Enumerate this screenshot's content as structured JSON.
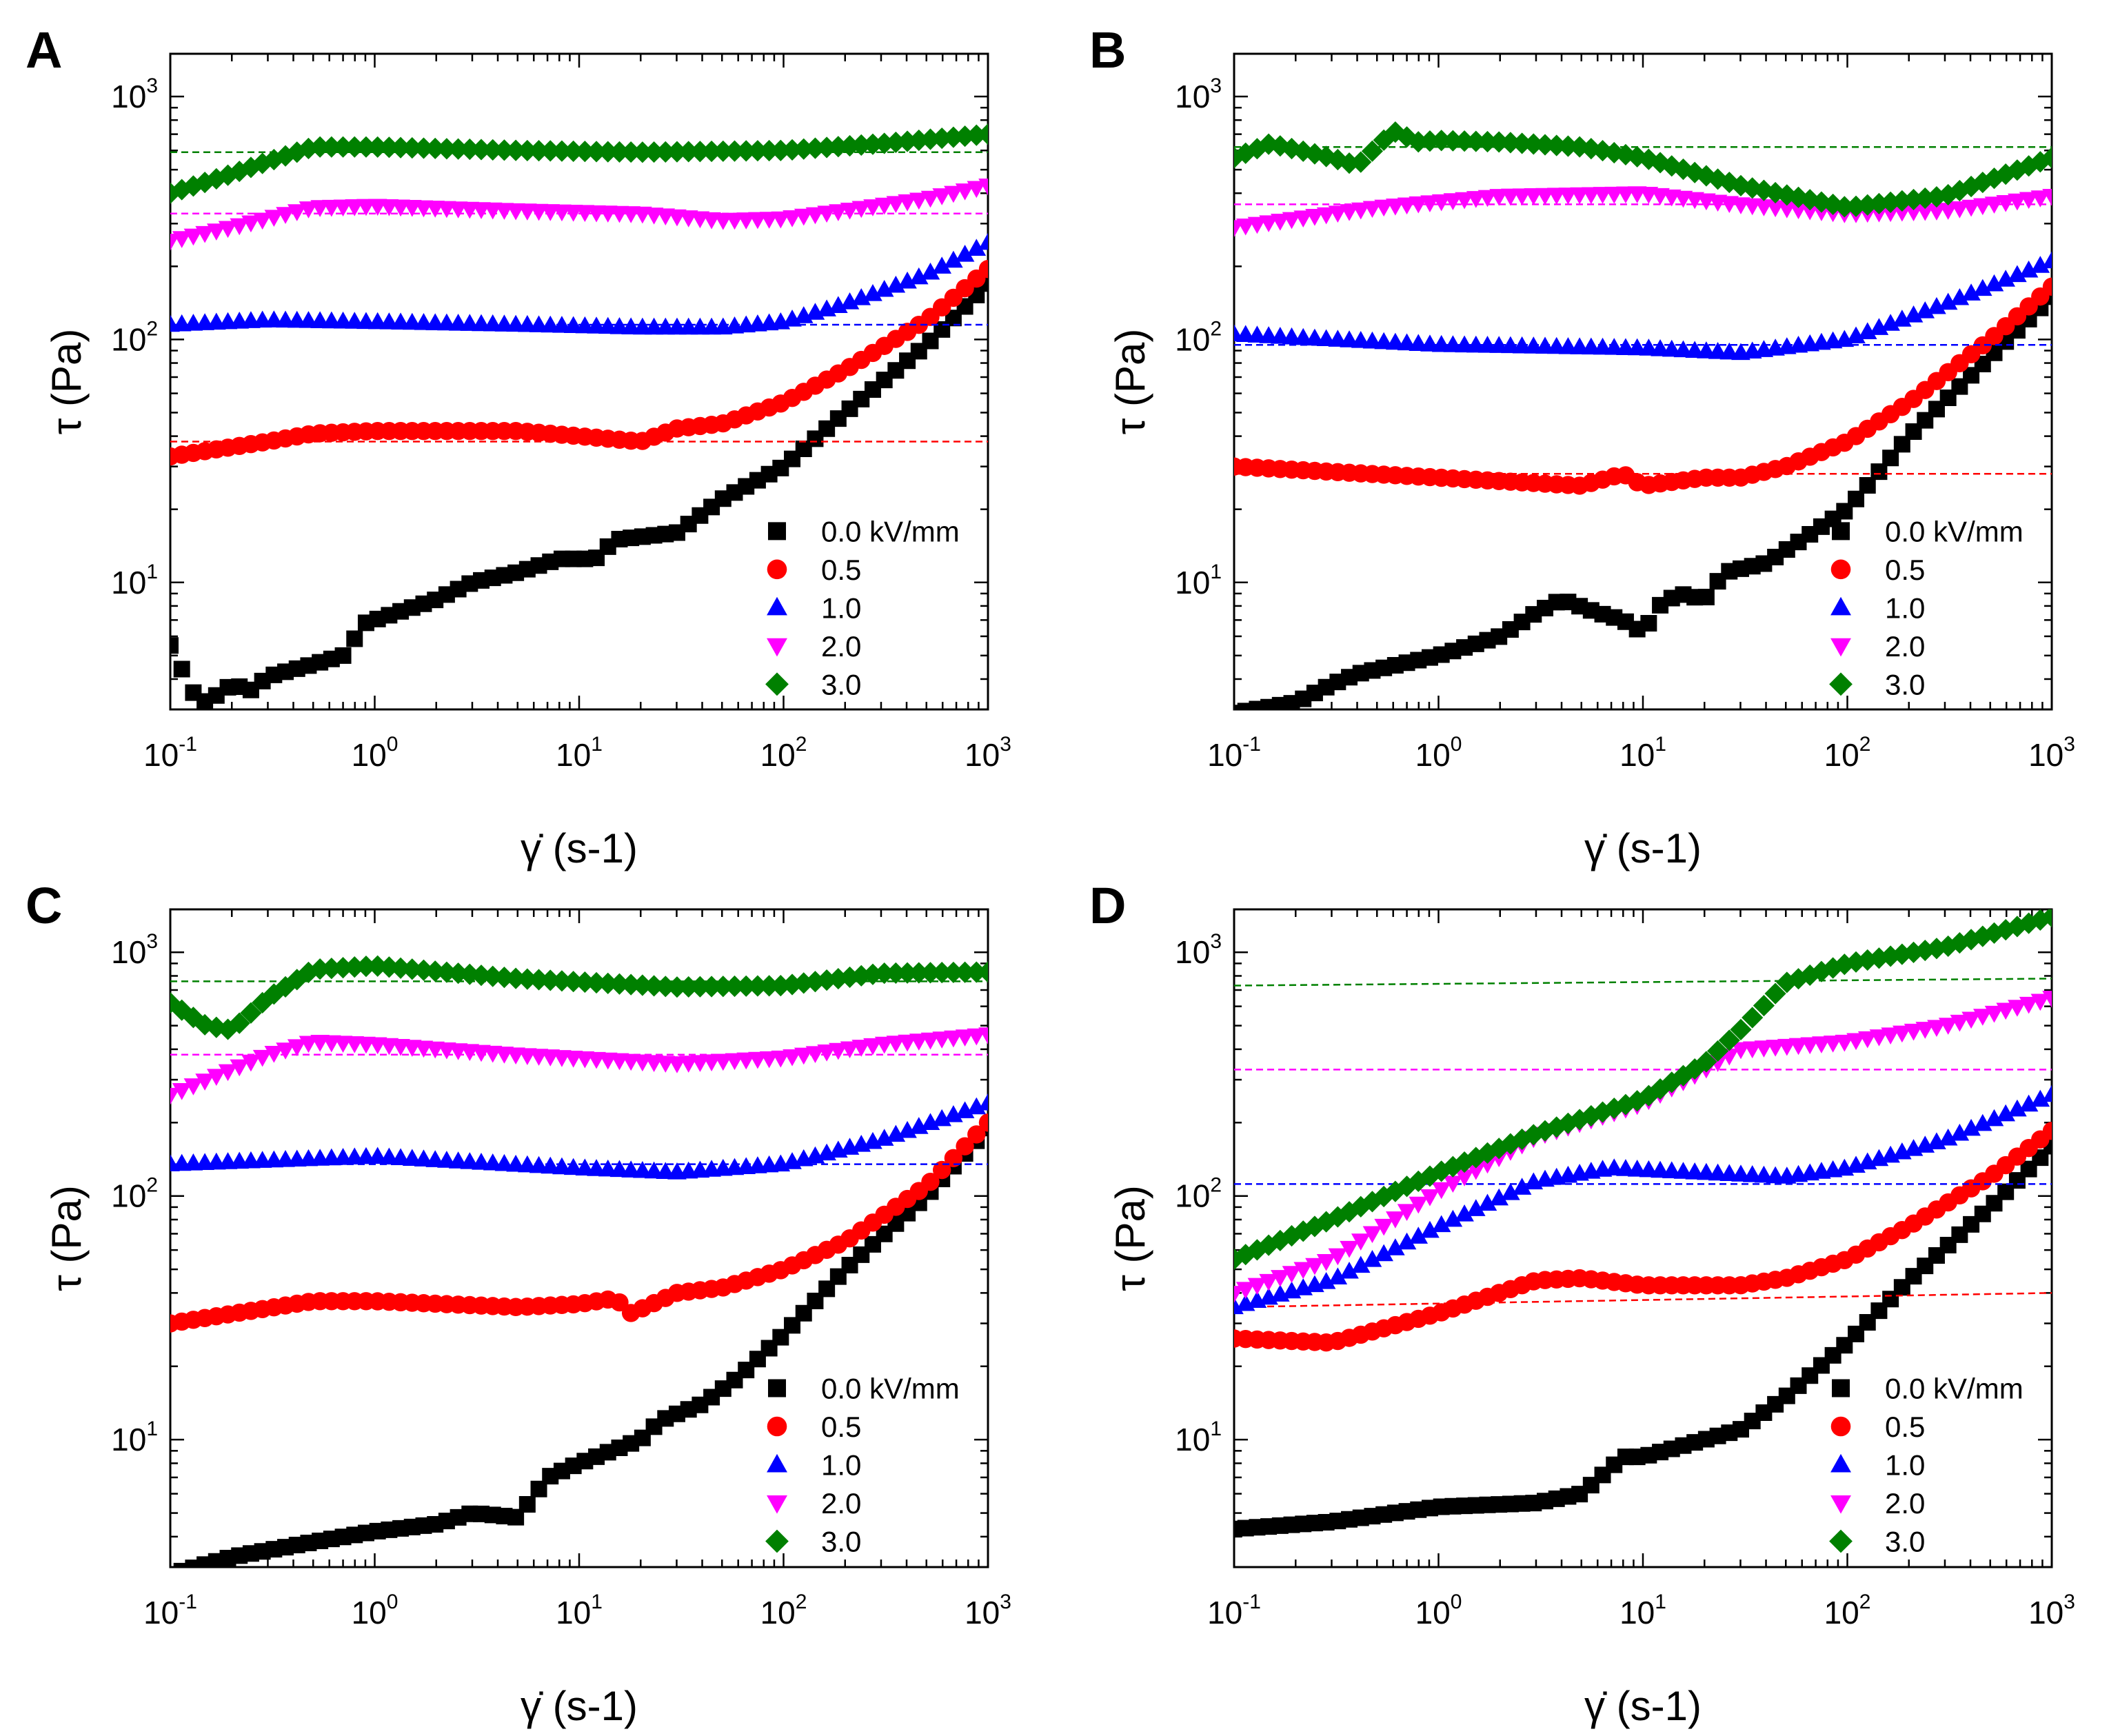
{
  "chart_data": [
    {
      "panel": "A",
      "type": "scatter",
      "xscale": "log",
      "yscale": "log",
      "xlim": [
        0.1,
        1000
      ],
      "ylim": [
        3,
        1500
      ],
      "xlabel": "γ̇ (s-1)",
      "ylabel": "τ (Pa)",
      "xticks": [
        "10^-1",
        "10^0",
        "10^1",
        "10^2",
        "10^3"
      ],
      "yticks": [
        "10^1",
        "10^2",
        "10^3"
      ],
      "legend_position": "bottom-right",
      "series": [
        {
          "name": "0.0 kV/mm",
          "color": "#000000",
          "marker": "square",
          "x": [
            0.1,
            0.13,
            0.15,
            0.2,
            0.25,
            0.3,
            0.5,
            0.7,
            0.9,
            2,
            3,
            5,
            8,
            12,
            15,
            30,
            50,
            100,
            200,
            500,
            1000
          ],
          "y": [
            5.5,
            3.5,
            3.2,
            3.8,
            3.6,
            4.1,
            4.6,
            5,
            6.8,
            8.5,
            10,
            11,
            12.5,
            12.5,
            15,
            16,
            22,
            30,
            50,
            95,
            170
          ]
        },
        {
          "name": "0.5",
          "color": "#ff0000",
          "marker": "circle",
          "yield_line": [
            38,
            38
          ],
          "x": [
            0.1,
            0.3,
            0.5,
            1,
            5,
            10,
            20,
            30,
            50,
            100,
            200,
            500,
            1000
          ],
          "y": [
            33,
            38,
            41,
            42,
            42,
            40,
            38,
            43,
            45,
            55,
            75,
            120,
            195
          ]
        },
        {
          "name": "1.0",
          "color": "#0000ff",
          "marker": "triangle-up",
          "yield_line": [
            115,
            115
          ],
          "x": [
            0.1,
            0.3,
            1,
            5,
            20,
            50,
            100,
            200,
            500,
            1000
          ],
          "y": [
            115,
            120,
            118,
            115,
            112,
            112,
            118,
            140,
            185,
            250
          ]
        },
        {
          "name": "2.0",
          "color": "#ff00ff",
          "marker": "triangle-down",
          "yield_line": [
            330,
            330
          ],
          "x": [
            0.1,
            0.2,
            0.5,
            1,
            5,
            20,
            50,
            100,
            200,
            500,
            1000
          ],
          "y": [
            255,
            290,
            350,
            355,
            340,
            330,
            310,
            315,
            340,
            380,
            430
          ]
        },
        {
          "name": "3.0",
          "color": "#008000",
          "marker": "diamond",
          "yield_line": [
            590,
            590
          ],
          "x": [
            0.1,
            0.2,
            0.3,
            0.5,
            0.7,
            1,
            5,
            20,
            100,
            300,
            1000
          ],
          "y": [
            400,
            480,
            540,
            620,
            620,
            620,
            600,
            590,
            600,
            640,
            700
          ]
        }
      ]
    },
    {
      "panel": "B",
      "type": "scatter",
      "xscale": "log",
      "yscale": "log",
      "xlim": [
        0.1,
        1000
      ],
      "ylim": [
        3,
        1500
      ],
      "xlabel": "γ̇ (s-1)",
      "ylabel": "τ (Pa)",
      "xticks": [
        "10^-1",
        "10^0",
        "10^1",
        "10^2",
        "10^3"
      ],
      "yticks": [
        "10^1",
        "10^2",
        "10^3"
      ],
      "legend_position": "bottom-right",
      "series": [
        {
          "name": "0.0 kV/mm",
          "color": "#000000",
          "marker": "square",
          "x": [
            0.1,
            0.2,
            0.3,
            0.4,
            1,
            2,
            3,
            4,
            6,
            8,
            10,
            12,
            15,
            20,
            25,
            40,
            60,
            100,
            200,
            500,
            1000
          ],
          "y": [
            2.9,
            3.2,
            3.8,
            4.2,
            5,
            6,
            7.5,
            8.5,
            7.5,
            7,
            6.2,
            8,
            9,
            8.5,
            11,
            12,
            15,
            20,
            40,
            85,
            150
          ]
        },
        {
          "name": "0.5",
          "color": "#ff0000",
          "marker": "circle",
          "yield_line": [
            28,
            28
          ],
          "x": [
            0.1,
            1,
            5,
            8,
            10,
            20,
            30,
            50,
            100,
            200,
            500,
            1000
          ],
          "y": [
            30,
            27,
            25,
            28,
            25,
            27,
            27,
            30,
            38,
            55,
            100,
            165
          ]
        },
        {
          "name": "1.0",
          "color": "#0000ff",
          "marker": "triangle-up",
          "yield_line": [
            95,
            95
          ],
          "x": [
            0.1,
            1,
            10,
            30,
            100,
            300,
            1000
          ],
          "y": [
            105,
            95,
            92,
            88,
            100,
            140,
            210
          ]
        },
        {
          "name": "2.0",
          "color": "#ff00ff",
          "marker": "triangle-down",
          "yield_line": [
            360,
            360
          ],
          "x": [
            0.1,
            0.5,
            2,
            10,
            30,
            100,
            300,
            1000
          ],
          "y": [
            290,
            350,
            390,
            400,
            360,
            330,
            340,
            390
          ]
        },
        {
          "name": "3.0",
          "color": "#008000",
          "marker": "diamond",
          "yield_line": [
            620,
            620
          ],
          "x": [
            0.1,
            0.15,
            0.3,
            0.4,
            0.6,
            0.8,
            1,
            2,
            5,
            10,
            30,
            100,
            300,
            1000
          ],
          "y": [
            560,
            640,
            560,
            520,
            720,
            650,
            660,
            650,
            620,
            560,
            430,
            350,
            390,
            560
          ]
        }
      ]
    },
    {
      "panel": "C",
      "type": "scatter",
      "xscale": "log",
      "yscale": "log",
      "xlim": [
        0.1,
        1000
      ],
      "ylim": [
        3,
        1500
      ],
      "xlabel": "γ̇ (s-1)",
      "ylabel": "τ (Pa)",
      "xticks": [
        "10^-1",
        "10^0",
        "10^1",
        "10^2",
        "10^3"
      ],
      "yticks": [
        "10^1",
        "10^2",
        "10^3"
      ],
      "legend_position": "bottom-right",
      "series": [
        {
          "name": "0.0 kV/mm",
          "color": "#000000",
          "marker": "square",
          "x": [
            0.1,
            0.2,
            0.5,
            1,
            2,
            3,
            5,
            7,
            10,
            20,
            25,
            40,
            60,
            100,
            200,
            500,
            1000
          ],
          "y": [
            2.8,
            3.3,
            3.8,
            4.2,
            4.5,
            5,
            4.8,
            7,
            8,
            10,
            12,
            14,
            18,
            27,
            50,
            100,
            190
          ]
        },
        {
          "name": "0.5",
          "color": "#ff0000",
          "marker": "circle",
          "x": [
            0.1,
            0.5,
            1,
            5,
            10,
            15,
            18,
            30,
            50,
            100,
            200,
            500,
            1000
          ],
          "y": [
            30,
            37,
            37,
            35,
            36,
            38,
            33,
            40,
            42,
            50,
            65,
            110,
            200
          ]
        },
        {
          "name": "1.0",
          "color": "#0000ff",
          "marker": "triangle-up",
          "yield_line": [
            135,
            135
          ],
          "x": [
            0.1,
            1,
            10,
            30,
            100,
            300,
            1000
          ],
          "y": [
            135,
            145,
            130,
            125,
            135,
            170,
            240
          ]
        },
        {
          "name": "2.0",
          "color": "#ff00ff",
          "marker": "triangle-down",
          "yield_line": [
            380,
            380
          ],
          "x": [
            0.1,
            0.2,
            0.3,
            0.5,
            1,
            5,
            30,
            100,
            300,
            1000
          ],
          "y": [
            260,
            330,
            380,
            430,
            420,
            380,
            350,
            370,
            420,
            460
          ]
        },
        {
          "name": "3.0",
          "color": "#008000",
          "marker": "diamond",
          "yield_line": [
            760,
            760
          ],
          "x": [
            0.1,
            0.15,
            0.2,
            0.3,
            0.5,
            1,
            5,
            30,
            100,
            300,
            1000
          ],
          "y": [
            620,
            500,
            480,
            650,
            850,
            880,
            780,
            720,
            730,
            820,
            830
          ]
        }
      ]
    },
    {
      "panel": "D",
      "type": "scatter",
      "xscale": "log",
      "yscale": "log",
      "xlim": [
        0.1,
        1000
      ],
      "ylim": [
        3,
        1500
      ],
      "xlabel": "γ̇ (s-1)",
      "ylabel": "τ (Pa)",
      "xticks": [
        "10^-1",
        "10^0",
        "10^1",
        "10^2",
        "10^3"
      ],
      "yticks": [
        "10^1",
        "10^2",
        "10^3"
      ],
      "legend_position": "bottom-right",
      "series": [
        {
          "name": "0.0 kV/mm",
          "color": "#000000",
          "marker": "square",
          "x": [
            0.1,
            0.3,
            1,
            3,
            5,
            8,
            10,
            20,
            30,
            50,
            100,
            200,
            500,
            1000
          ],
          "y": [
            4.3,
            4.6,
            5.3,
            5.5,
            6,
            8.5,
            8.5,
            10,
            11,
            15,
            25,
            45,
            90,
            160
          ]
        },
        {
          "name": "0.5",
          "color": "#ff0000",
          "marker": "circle",
          "yield_line": [
            35,
            40
          ],
          "x": [
            0.1,
            0.3,
            1,
            3,
            5,
            10,
            30,
            50,
            100,
            200,
            500,
            1000
          ],
          "y": [
            26,
            25,
            33,
            45,
            46,
            43,
            43,
            46,
            55,
            75,
            120,
            185
          ]
        },
        {
          "name": "1.0",
          "color": "#0000ff",
          "marker": "triangle-up",
          "yield_line": [
            112,
            112
          ],
          "x": [
            0.1,
            0.3,
            1,
            3,
            7,
            10,
            50,
            100,
            300,
            1000
          ],
          "y": [
            35,
            45,
            75,
            115,
            130,
            128,
            120,
            130,
            170,
            260
          ]
        },
        {
          "name": "2.0",
          "color": "#ff00ff",
          "marker": "triangle-down",
          "yield_line": [
            330,
            330
          ],
          "x": [
            0.1,
            0.3,
            1,
            3,
            10,
            20,
            30,
            100,
            300,
            1000
          ],
          "y": [
            40,
            55,
            105,
            175,
            240,
            330,
            400,
            430,
            500,
            650
          ]
        },
        {
          "name": "3.0",
          "color": "#008000",
          "marker": "diamond",
          "yield_line": [
            730,
            780
          ],
          "x": [
            0.1,
            0.3,
            1,
            3,
            10,
            20,
            30,
            50,
            100,
            300,
            1000
          ],
          "y": [
            55,
            80,
            125,
            180,
            250,
            350,
            480,
            750,
            900,
            1050,
            1400
          ]
        }
      ]
    }
  ]
}
